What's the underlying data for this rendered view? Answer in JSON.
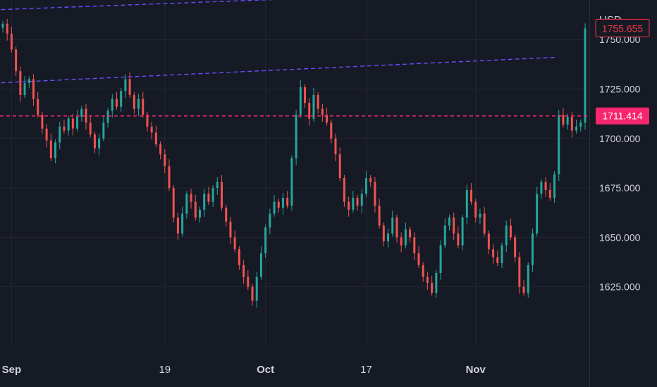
{
  "chart_data": {
    "type": "candlestick",
    "currency_label": "USD",
    "x_labels": [
      {
        "label": "Sep",
        "index": 2,
        "major": true
      },
      {
        "label": "19",
        "index": 37,
        "major": false
      },
      {
        "label": "Oct",
        "index": 60,
        "major": true
      },
      {
        "label": "17",
        "index": 83,
        "major": false
      },
      {
        "label": "Nov",
        "index": 108,
        "major": true
      }
    ],
    "y_ticks": [
      "1625.000",
      "1650.000",
      "1675.000",
      "1700.000",
      "1725.000",
      "1750.000"
    ],
    "ylim": [
      1595,
      1770
    ],
    "current_price": {
      "value": 1755.655,
      "label": "1755.655",
      "color": "#f23645"
    },
    "horizontal_level": {
      "value": 1711.414,
      "label": "1711.414",
      "color": "#f7266e"
    },
    "trendlines": [
      {
        "from": [
          -2,
          1765
        ],
        "to": [
          108,
          1774
        ],
        "color": "#6a4cff"
      },
      {
        "from": [
          -2,
          1728
        ],
        "to": [
          126,
          1741
        ],
        "color": "#6a4cff"
      }
    ],
    "up_color": "#26a69a",
    "down_color": "#ef5350",
    "closes": [
      1758,
      1753,
      1745,
      1734,
      1722,
      1728,
      1730,
      1720,
      1712,
      1705,
      1699,
      1690,
      1698,
      1706,
      1704,
      1710,
      1705,
      1711,
      1715,
      1708,
      1702,
      1695,
      1700,
      1708,
      1714,
      1720,
      1716,
      1724,
      1730,
      1722,
      1715,
      1720,
      1712,
      1706,
      1703,
      1697,
      1692,
      1686,
      1675,
      1660,
      1652,
      1662,
      1672,
      1668,
      1660,
      1664,
      1672,
      1668,
      1675,
      1678,
      1665,
      1658,
      1650,
      1644,
      1636,
      1630,
      1625,
      1618,
      1630,
      1642,
      1655,
      1662,
      1668,
      1665,
      1670,
      1666,
      1690,
      1712,
      1726,
      1718,
      1710,
      1722,
      1715,
      1712,
      1708,
      1700,
      1692,
      1680,
      1668,
      1664,
      1670,
      1666,
      1672,
      1680,
      1678,
      1666,
      1656,
      1648,
      1652,
      1660,
      1650,
      1646,
      1654,
      1650,
      1642,
      1636,
      1630,
      1627,
      1622,
      1632,
      1646,
      1656,
      1660,
      1652,
      1646,
      1660,
      1674,
      1668,
      1660,
      1662,
      1652,
      1644,
      1640,
      1637,
      1646,
      1656,
      1650,
      1640,
      1625,
      1622,
      1636,
      1652,
      1672,
      1678,
      1674,
      1670,
      1682,
      1712,
      1707,
      1711,
      1704,
      1706,
      1708,
      1755.655
    ]
  }
}
